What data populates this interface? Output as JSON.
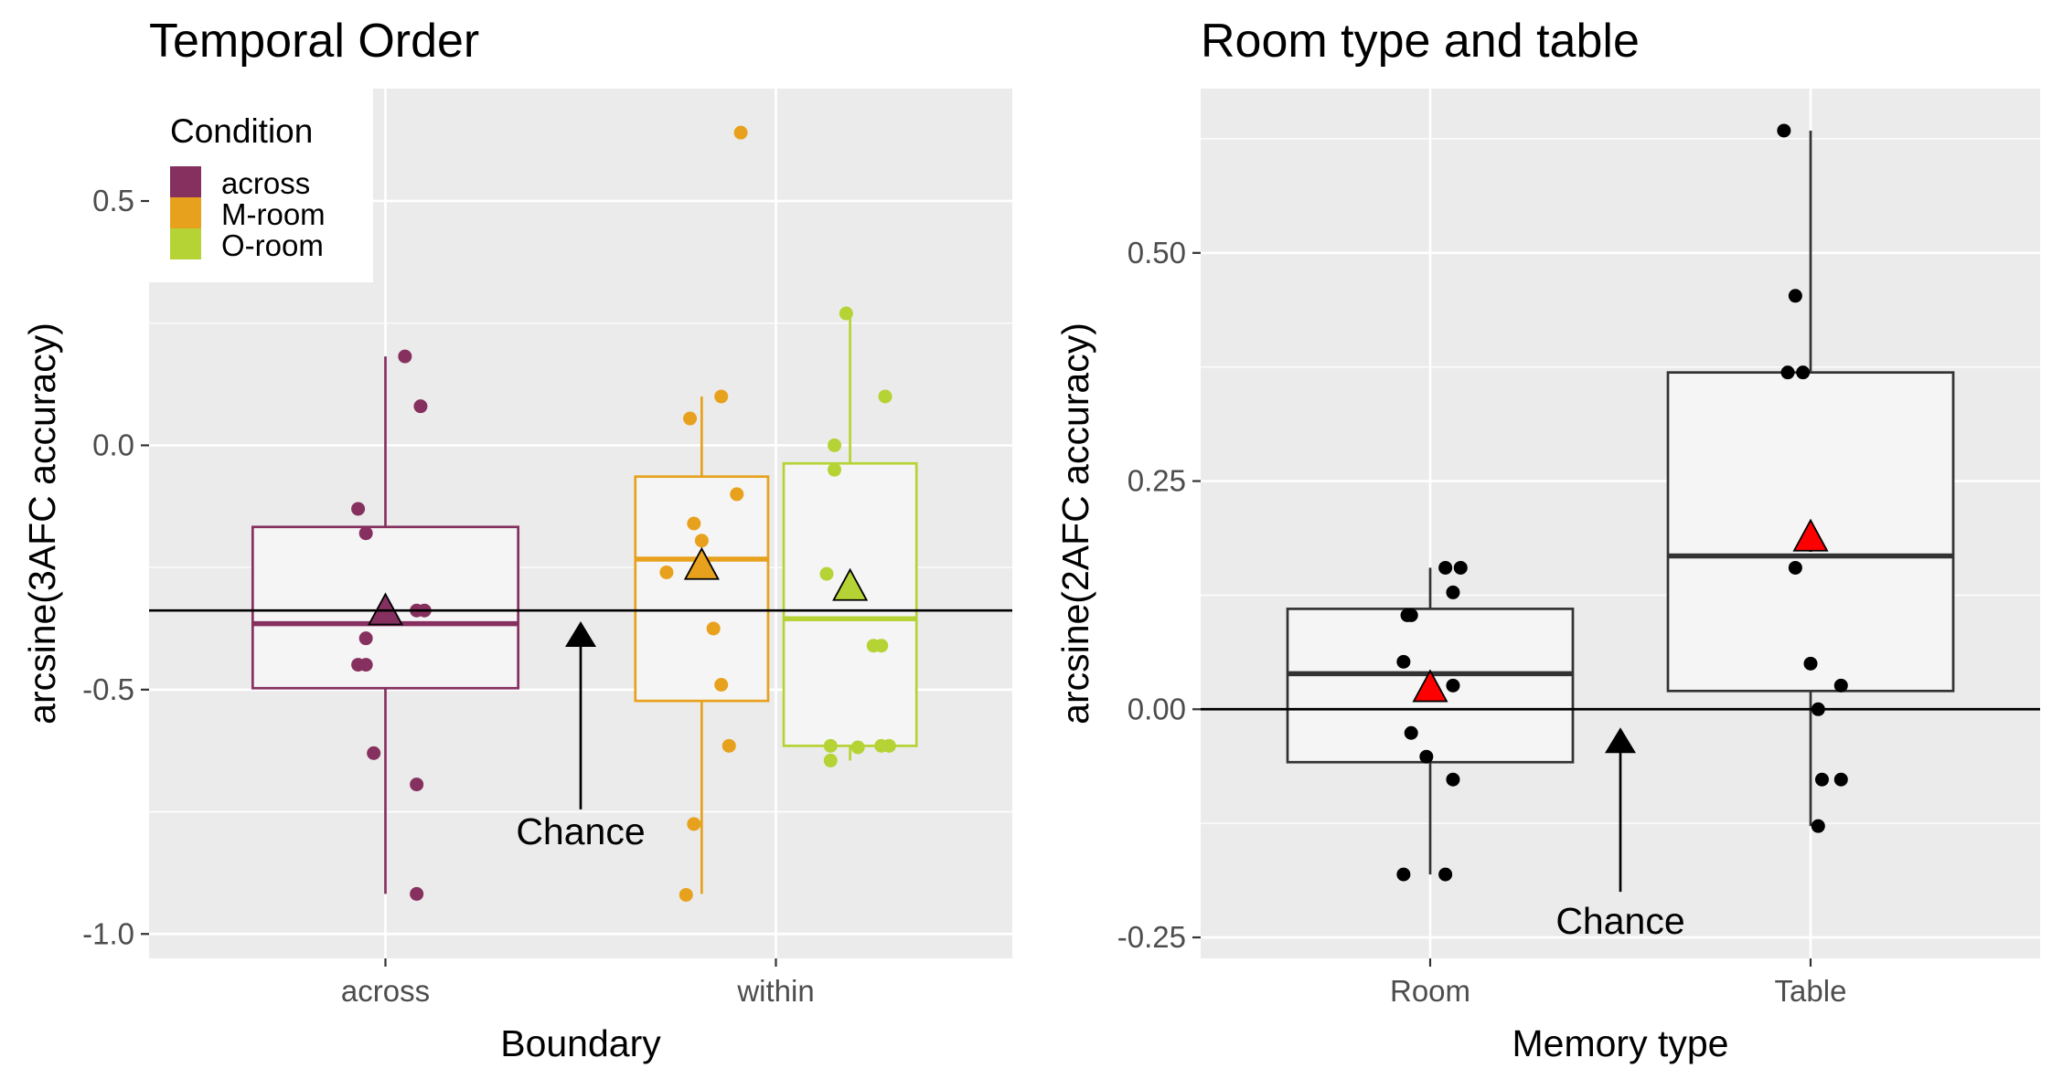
{
  "chart_data": [
    {
      "type": "box",
      "title": "Temporal Order",
      "xlabel": "Boundary",
      "ylabel": "arcsine(3AFC accuracy)",
      "ylim": [
        -1.05,
        0.73
      ],
      "yticks": [
        {
          "value": 0.5,
          "label": "0.5"
        },
        {
          "value": 0.0,
          "label": "0.0"
        },
        {
          "value": -0.5,
          "label": "-0.5"
        },
        {
          "value": -1.0,
          "label": "-1.0"
        }
      ],
      "categories": [
        "across",
        "within"
      ],
      "grid": true,
      "chance_line": -0.338,
      "annotation": {
        "text": "Chance",
        "category_position": 1.5,
        "arrow_from": -0.745,
        "arrow_to": -0.36,
        "label_y": -0.79
      },
      "legend": {
        "title": "Condition",
        "position": "top-left",
        "entries": [
          {
            "label": "across",
            "color": "#86305f"
          },
          {
            "label": "M-room",
            "color": "#e7a11d"
          },
          {
            "label": "O-room",
            "color": "#b5d334"
          }
        ]
      },
      "boxes": [
        {
          "name": "across",
          "category": 1,
          "offset": 0,
          "width": 0.68,
          "color": "#86305f",
          "q1": -0.497,
          "median": -0.365,
          "q3": -0.167,
          "whisker_low": -0.918,
          "whisker_high": 0.182,
          "mean": -0.34,
          "points": [
            [
              0.05,
              0.182
            ],
            [
              0.09,
              0.08
            ],
            [
              -0.07,
              -0.13
            ],
            [
              -0.05,
              -0.18
            ],
            [
              0.08,
              -0.338
            ],
            [
              0.1,
              -0.338
            ],
            [
              -0.05,
              -0.395
            ],
            [
              -0.07,
              -0.449
            ],
            [
              -0.05,
              -0.449
            ],
            [
              -0.03,
              -0.63
            ],
            [
              0.08,
              -0.694
            ],
            [
              0.08,
              -0.918
            ]
          ]
        },
        {
          "name": "M-room",
          "category": 2,
          "offset": -0.19,
          "width": 0.34,
          "color": "#e7a11d",
          "q1": -0.523,
          "median": -0.233,
          "q3": -0.064,
          "whisker_low": -0.918,
          "whisker_high": 0.1,
          "mean": -0.247,
          "points": [
            [
              0.1,
              0.64
            ],
            [
              0.05,
              0.1
            ],
            [
              -0.03,
              0.055
            ],
            [
              0.09,
              -0.1
            ],
            [
              -0.02,
              -0.16
            ],
            [
              0.0,
              -0.195
            ],
            [
              -0.09,
              -0.26
            ],
            [
              0.03,
              -0.375
            ],
            [
              0.05,
              -0.49
            ],
            [
              0.07,
              -0.615
            ],
            [
              -0.02,
              -0.775
            ],
            [
              -0.04,
              -0.92
            ]
          ]
        },
        {
          "name": "O-room",
          "category": 2,
          "offset": 0.19,
          "width": 0.34,
          "color": "#b5d334",
          "q1": -0.615,
          "median": -0.355,
          "q3": -0.037,
          "whisker_low": -0.645,
          "whisker_high": 0.27,
          "mean": -0.29,
          "points": [
            [
              -0.01,
              0.27
            ],
            [
              0.09,
              0.1
            ],
            [
              -0.04,
              0.0
            ],
            [
              -0.04,
              -0.05
            ],
            [
              -0.06,
              -0.263
            ],
            [
              0.06,
              -0.41
            ],
            [
              0.08,
              -0.41
            ],
            [
              -0.05,
              -0.615
            ],
            [
              0.02,
              -0.618
            ],
            [
              0.08,
              -0.615
            ],
            [
              0.1,
              -0.615
            ],
            [
              -0.05,
              -0.645
            ]
          ]
        }
      ]
    },
    {
      "type": "box",
      "title": "Room type and table",
      "xlabel": "Memory type",
      "ylabel": "arcsine(2AFC accuracy)",
      "ylim": [
        -0.273,
        0.68
      ],
      "yticks": [
        {
          "value": 0.5,
          "label": "0.50"
        },
        {
          "value": 0.25,
          "label": "0.25"
        },
        {
          "value": 0.0,
          "label": "0.00"
        },
        {
          "value": -0.25,
          "label": "-0.25"
        }
      ],
      "categories": [
        "Room",
        "Table"
      ],
      "grid": true,
      "chance_line": 0.0,
      "annotation": {
        "text": "Chance",
        "category_position": 1.5,
        "arrow_from": -0.2,
        "arrow_to": -0.02,
        "label_y": -0.232
      },
      "boxes": [
        {
          "name": "Room",
          "category": 1,
          "offset": 0,
          "width": 0.75,
          "color": "#333333",
          "q1": -0.058,
          "median": 0.039,
          "q3": 0.11,
          "whisker_low": -0.181,
          "whisker_high": 0.155,
          "mean": 0.023,
          "points": [
            [
              0.04,
              0.155
            ],
            [
              0.08,
              0.155
            ],
            [
              -0.06,
              0.103
            ],
            [
              -0.05,
              0.103
            ],
            [
              0.06,
              0.128
            ],
            [
              -0.07,
              0.052
            ],
            [
              0.06,
              0.026
            ],
            [
              -0.05,
              -0.026
            ],
            [
              -0.01,
              -0.052
            ],
            [
              0.06,
              -0.077
            ],
            [
              -0.07,
              -0.181
            ],
            [
              0.04,
              -0.181
            ]
          ]
        },
        {
          "name": "Table",
          "category": 2,
          "offset": 0,
          "width": 0.75,
          "color": "#333333",
          "q1": 0.02,
          "median": 0.168,
          "q3": 0.369,
          "whisker_low": -0.128,
          "whisker_high": 0.634,
          "mean": 0.188,
          "points": [
            [
              -0.07,
              0.634
            ],
            [
              -0.04,
              0.453
            ],
            [
              -0.06,
              0.369
            ],
            [
              -0.02,
              0.369
            ],
            [
              0.0,
              0.18
            ],
            [
              -0.04,
              0.155
            ],
            [
              0.0,
              0.05
            ],
            [
              0.08,
              0.026
            ],
            [
              0.02,
              0.0
            ],
            [
              0.03,
              -0.077
            ],
            [
              0.08,
              -0.077
            ],
            [
              0.02,
              -0.128
            ]
          ]
        }
      ]
    }
  ]
}
